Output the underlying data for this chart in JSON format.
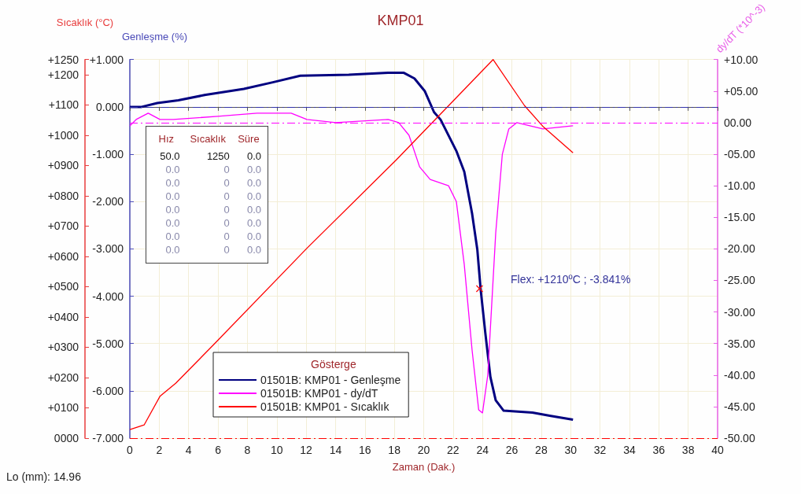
{
  "chart_data": {
    "type": "line",
    "title": "KMP01",
    "xlabel": "Zaman (Dak.)",
    "ylabel": "Genleşme (%)",
    "y2label": "dy/dT (*10^-3)",
    "y3label": "Sıcaklık (°C)",
    "legend_title": "Gösterge",
    "legend": "bottom left",
    "grid": true,
    "marker": "none",
    "xlim": [
      0,
      40
    ],
    "xticks": [
      0,
      2,
      4,
      6,
      8,
      10,
      12,
      14,
      16,
      18,
      20,
      22,
      24,
      26,
      28,
      30,
      32,
      34,
      36,
      38,
      40
    ],
    "ylim": [
      -7,
      1
    ],
    "yticks": [
      {
        "value": -7,
        "label": "-7.000"
      },
      {
        "value": -6,
        "label": "-6.000"
      },
      {
        "value": -5,
        "label": "-5.000"
      },
      {
        "value": -4,
        "label": "-4.000"
      },
      {
        "value": -3,
        "label": "-3.000"
      },
      {
        "value": -2,
        "label": "-2.000"
      },
      {
        "value": -1,
        "label": "-1.000"
      },
      {
        "value": 0,
        "label": "0.000"
      },
      {
        "value": 1,
        "label": "+1.000"
      }
    ],
    "y2lim": [
      -50,
      10
    ],
    "y2ticks": [
      {
        "value": -50,
        "label": "-50.00"
      },
      {
        "value": -45,
        "label": "-45.00"
      },
      {
        "value": -40,
        "label": "-40.00"
      },
      {
        "value": -35,
        "label": "-35.00"
      },
      {
        "value": -30,
        "label": "-30.00"
      },
      {
        "value": -25,
        "label": "-25.00"
      },
      {
        "value": -20,
        "label": "-20.00"
      },
      {
        "value": -15,
        "label": "-15.00"
      },
      {
        "value": -10,
        "label": "-10.00"
      },
      {
        "value": -5,
        "label": "-05.00"
      },
      {
        "value": 0,
        "label": "00.00"
      },
      {
        "value": 5,
        "label": "+05.00"
      },
      {
        "value": 10,
        "label": "+10.00"
      }
    ],
    "y3lim": [
      0,
      1250
    ],
    "y3ticks": [
      {
        "value": 0,
        "label": "0000"
      },
      {
        "value": 100,
        "label": "+0100"
      },
      {
        "value": 200,
        "label": "+0200"
      },
      {
        "value": 300,
        "label": "+0300"
      },
      {
        "value": 400,
        "label": "+0400"
      },
      {
        "value": 500,
        "label": "+0500"
      },
      {
        "value": 600,
        "label": "+0600"
      },
      {
        "value": 700,
        "label": "+0700"
      },
      {
        "value": 800,
        "label": "+0800"
      },
      {
        "value": 900,
        "label": "+0900"
      },
      {
        "value": 1000,
        "label": "+1000"
      },
      {
        "value": 1100,
        "label": "+1100"
      },
      {
        "value": 1200,
        "label": "+1200"
      },
      {
        "value": 1250,
        "label": "+1250"
      }
    ],
    "series": [
      {
        "name": "01501B: KMP01 - Genleşme",
        "color": "#000080",
        "x": [
          0,
          0.8,
          1.87,
          3.3,
          5.09,
          7.76,
          9.73,
          11.6,
          14.9,
          17.57,
          18.65,
          19.37,
          20.08,
          20.7,
          21.15,
          22.22,
          22.76,
          23.29,
          23.65,
          23.87,
          24.19,
          24.54,
          24.9,
          25.44,
          27.4,
          28.65,
          30.16
        ],
        "values": [
          0,
          0,
          0.08,
          0.14,
          0.25,
          0.38,
          0.52,
          0.66,
          0.68,
          0.72,
          0.72,
          0.6,
          0.33,
          -0.11,
          -0.27,
          -0.93,
          -1.37,
          -2.25,
          -3.02,
          -3.84,
          -4.77,
          -5.71,
          -6.2,
          -6.42,
          -6.46,
          -6.53,
          -6.61
        ]
      },
      {
        "name": "01501B: KMP01 - dy/dT",
        "color": "#ff00ff",
        "axis": "y2",
        "x": [
          0,
          0.43,
          1.25,
          2.05,
          2.95,
          5.98,
          8.66,
          10.98,
          12.05,
          14.01,
          17.58,
          18.3,
          19.0,
          19.72,
          20.44,
          21.69,
          22.22,
          22.76,
          23.29,
          23.74,
          24.0,
          24.36,
          24.9,
          25.35,
          25.79,
          26.33,
          28.11,
          30.16
        ],
        "values": [
          -0.5,
          0.5,
          1.5,
          0.5,
          0.5,
          1,
          1.5,
          1.5,
          0.5,
          0,
          0.5,
          0,
          -2,
          -7,
          -9,
          -10,
          -12.5,
          -22.5,
          -36,
          -45.5,
          -46,
          -40,
          -17.5,
          -5,
          -1,
          0,
          -1,
          -0.5
        ]
      },
      {
        "name": "01501B: KMP01 - Sıcaklık",
        "color": "#ff0000",
        "axis": "y3",
        "x": [
          0,
          0.98,
          2.05,
          3.12,
          5.71,
          12.05,
          18.12,
          24.72,
          26.86,
          28.1,
          30.16
        ],
        "values": [
          28,
          44,
          138,
          181,
          309,
          627,
          918,
          1250,
          1098,
          1030,
          942
        ]
      }
    ],
    "ref_lines": [
      {
        "axis": "y",
        "value": 0,
        "color": "#3333aa",
        "line_style": "dashed"
      },
      {
        "axis": "y2",
        "value": 0,
        "color": "#ff00ff",
        "line_style": "dashed"
      },
      {
        "axis": "y3",
        "value": 0,
        "color": "#ff0000",
        "line_style": "dashed"
      }
    ],
    "annotations": [
      {
        "text": "Flex: +1210ºC ; -3.841%",
        "x": 23.8,
        "y": -3.841
      },
      "Lo (mm): 14.96",
      "Hız",
      "Sıcaklık",
      "Süre",
      "50.0",
      "1250",
      "0.0",
      "0.0",
      "0",
      "0.0",
      "0.0",
      "0",
      "0.0",
      "0.0",
      "0",
      "0.0",
      "0.0",
      "0",
      "0.0",
      "0.0",
      "0",
      "0.0",
      "0.0",
      "0",
      "0.0",
      "0.0",
      "0",
      "0.0"
    ]
  }
}
